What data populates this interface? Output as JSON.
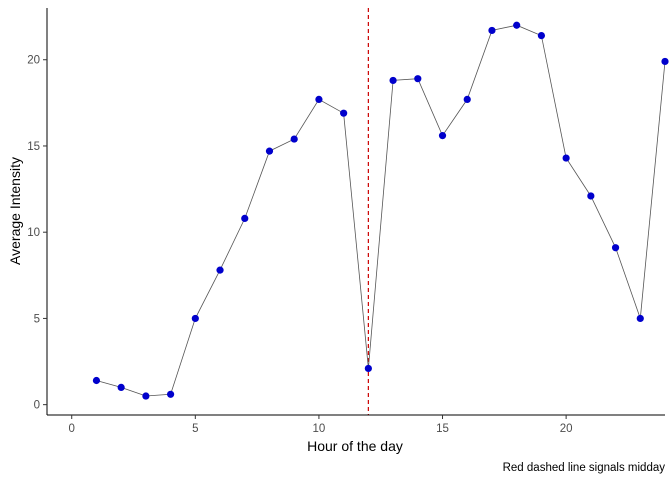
{
  "chart_data": {
    "type": "line",
    "xlabel": "Hour of the day",
    "ylabel": "Average Intensity",
    "caption": "Red dashed line signals midday",
    "xlim": [
      -1,
      24
    ],
    "ylim": [
      -0.6,
      23
    ],
    "x_ticks": [
      0,
      5,
      10,
      15,
      20
    ],
    "y_ticks": [
      0,
      5,
      10,
      15,
      20
    ],
    "grid": false,
    "vline": {
      "x": 12,
      "color": "#cc0000",
      "style": "dashed"
    },
    "series": [
      {
        "line_color": "#555555",
        "point_color": "#0000cc",
        "x": [
          1,
          2,
          3,
          4,
          5,
          6,
          7,
          8,
          9,
          10,
          11,
          12,
          13,
          14,
          15,
          16,
          17,
          18,
          19,
          20,
          21,
          22,
          23,
          24
        ],
        "y": [
          1.4,
          1.0,
          0.5,
          0.6,
          5.0,
          7.8,
          10.8,
          14.7,
          15.4,
          17.7,
          16.9,
          2.1,
          18.8,
          18.9,
          15.6,
          17.7,
          21.7,
          22.0,
          21.4,
          14.3,
          12.1,
          9.1,
          5.0,
          19.9
        ]
      }
    ]
  }
}
